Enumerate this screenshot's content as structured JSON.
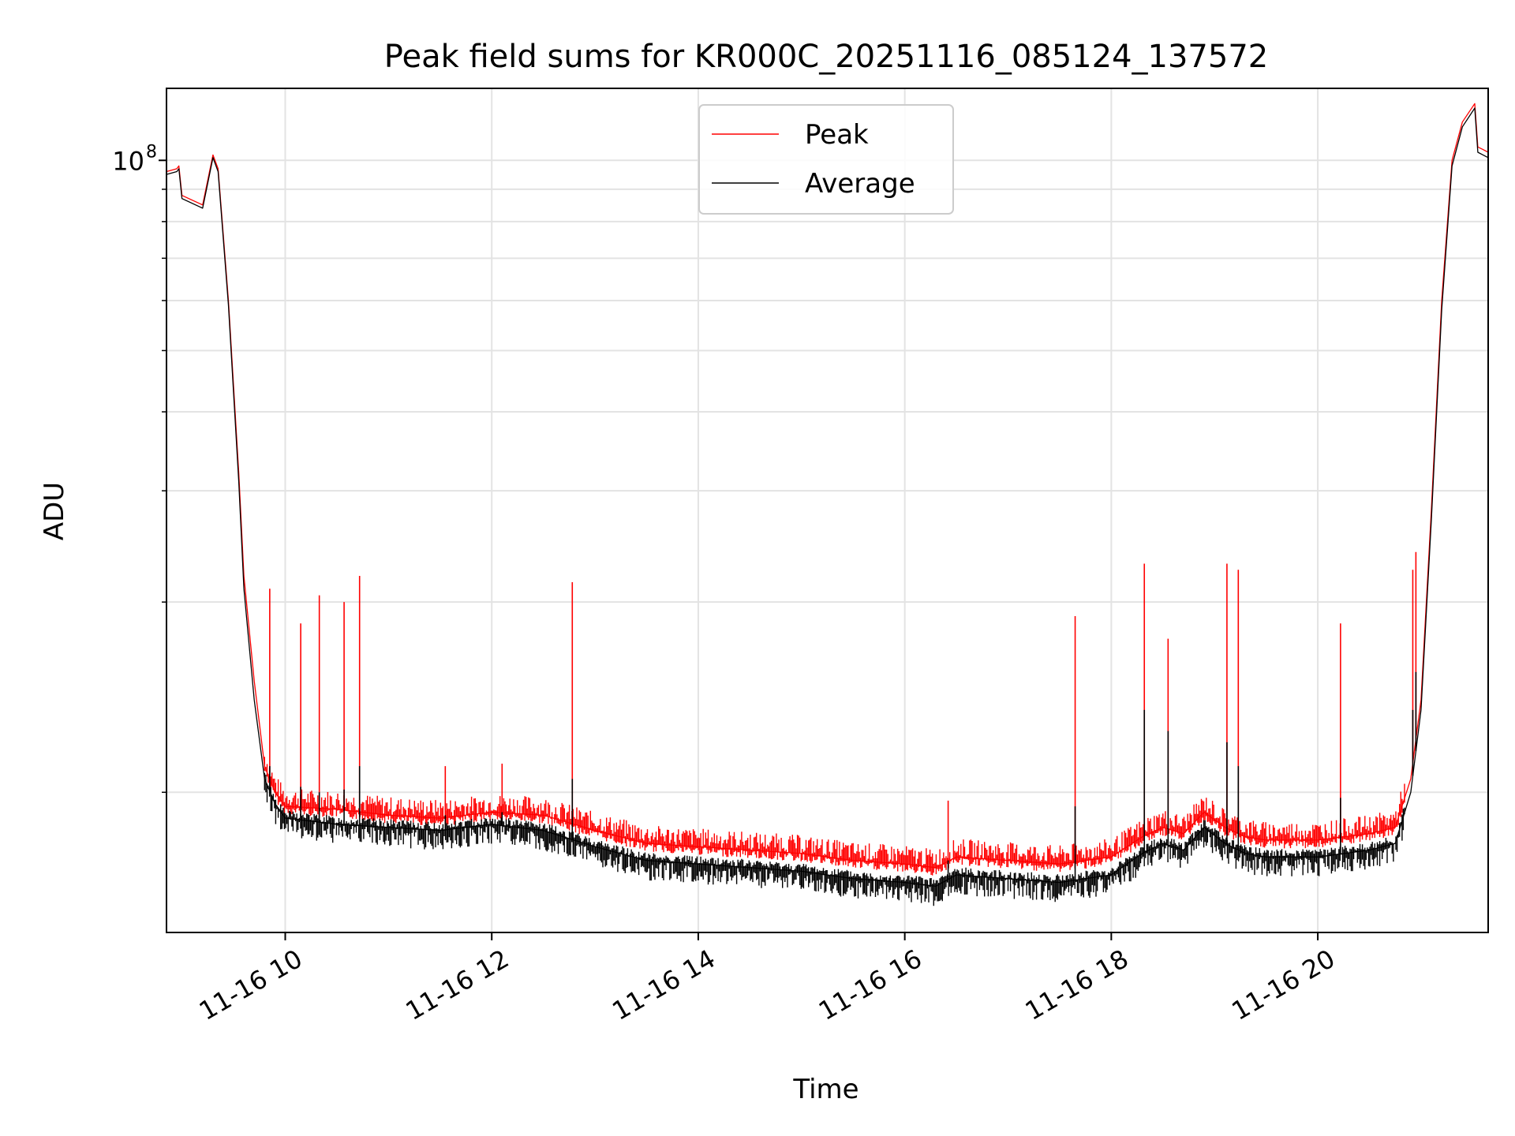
{
  "chart_data": {
    "type": "line",
    "title": "Peak field sums for KR000C_20251116_085124_137572",
    "xlabel": "Time",
    "ylabel": "ADU",
    "yscale": "log",
    "grid": true,
    "legend_position": "top-center",
    "x_unit": "hours since 2025-11-16 00:00",
    "xlim": [
      8.85,
      21.65
    ],
    "ylim": [
      6000000,
      130000000
    ],
    "x_ticks": [
      {
        "value": 10,
        "label": "11-16 10"
      },
      {
        "value": 12,
        "label": "11-16 12"
      },
      {
        "value": 14,
        "label": "11-16 14"
      },
      {
        "value": 16,
        "label": "11-16 16"
      },
      {
        "value": 18,
        "label": "11-16 18"
      },
      {
        "value": 20,
        "label": "11-16 20"
      }
    ],
    "y_major_ticks": [
      {
        "value": 100000000,
        "base": "10",
        "exp": "8"
      }
    ],
    "y_minor_ticks": [
      10000000,
      20000000,
      30000000,
      40000000,
      50000000,
      60000000,
      70000000,
      80000000,
      90000000
    ],
    "series": [
      {
        "name": "Peak",
        "color": "#ff0000",
        "points": [
          [
            8.85,
            96000000
          ],
          [
            8.95,
            97000000
          ],
          [
            8.97,
            98000000
          ],
          [
            9.0,
            88000000
          ],
          [
            9.2,
            85000000
          ],
          [
            9.3,
            102000000
          ],
          [
            9.35,
            97000000
          ],
          [
            9.45,
            60000000
          ],
          [
            9.55,
            32000000
          ],
          [
            9.6,
            22000000
          ],
          [
            9.7,
            15000000
          ],
          [
            9.8,
            11000000
          ],
          [
            9.9,
            10000000
          ],
          [
            10.0,
            9500000
          ],
          [
            10.5,
            9400000
          ],
          [
            11.0,
            9200000
          ],
          [
            11.5,
            9100000
          ],
          [
            12.0,
            9300000
          ],
          [
            12.5,
            9200000
          ],
          [
            13.0,
            8700000
          ],
          [
            13.5,
            8300000
          ],
          [
            14.0,
            8200000
          ],
          [
            14.5,
            8100000
          ],
          [
            15.0,
            8000000
          ],
          [
            15.5,
            7800000
          ],
          [
            16.0,
            7700000
          ],
          [
            16.3,
            7600000
          ],
          [
            16.5,
            7900000
          ],
          [
            17.0,
            7800000
          ],
          [
            17.5,
            7700000
          ],
          [
            18.0,
            7900000
          ],
          [
            18.3,
            8500000
          ],
          [
            18.5,
            8800000
          ],
          [
            18.7,
            8600000
          ],
          [
            18.9,
            9300000
          ],
          [
            19.1,
            8800000
          ],
          [
            19.3,
            8500000
          ],
          [
            19.5,
            8400000
          ],
          [
            20.0,
            8400000
          ],
          [
            20.5,
            8600000
          ],
          [
            20.75,
            8800000
          ],
          [
            20.9,
            10500000
          ],
          [
            21.0,
            14000000
          ],
          [
            21.1,
            28000000
          ],
          [
            21.2,
            60000000
          ],
          [
            21.3,
            100000000
          ],
          [
            21.4,
            115000000
          ],
          [
            21.52,
            123000000
          ],
          [
            21.55,
            105000000
          ],
          [
            21.6,
            104000000
          ],
          [
            21.65,
            103000000
          ]
        ]
      },
      {
        "name": "Average",
        "color": "#000000",
        "points": [
          [
            8.85,
            95000000
          ],
          [
            8.95,
            96000000
          ],
          [
            8.97,
            97000000
          ],
          [
            9.0,
            87000000
          ],
          [
            9.2,
            84000000
          ],
          [
            9.3,
            101000000
          ],
          [
            9.35,
            96000000
          ],
          [
            9.45,
            59000000
          ],
          [
            9.55,
            31000000
          ],
          [
            9.6,
            21000000
          ],
          [
            9.7,
            14000000
          ],
          [
            9.8,
            10500000
          ],
          [
            9.9,
            9600000
          ],
          [
            10.0,
            9100000
          ],
          [
            10.5,
            8900000
          ],
          [
            11.0,
            8800000
          ],
          [
            11.5,
            8700000
          ],
          [
            12.0,
            8900000
          ],
          [
            12.5,
            8700000
          ],
          [
            13.0,
            8200000
          ],
          [
            13.5,
            7800000
          ],
          [
            14.0,
            7700000
          ],
          [
            14.5,
            7600000
          ],
          [
            15.0,
            7500000
          ],
          [
            15.5,
            7300000
          ],
          [
            16.0,
            7200000
          ],
          [
            16.3,
            7100000
          ],
          [
            16.5,
            7400000
          ],
          [
            17.0,
            7300000
          ],
          [
            17.5,
            7200000
          ],
          [
            18.0,
            7400000
          ],
          [
            18.3,
            8000000
          ],
          [
            18.5,
            8300000
          ],
          [
            18.7,
            8100000
          ],
          [
            18.9,
            8800000
          ],
          [
            19.1,
            8300000
          ],
          [
            19.3,
            8000000
          ],
          [
            19.5,
            7900000
          ],
          [
            20.0,
            7900000
          ],
          [
            20.5,
            8100000
          ],
          [
            20.75,
            8300000
          ],
          [
            20.9,
            10000000
          ],
          [
            21.0,
            13500000
          ],
          [
            21.1,
            27000000
          ],
          [
            21.2,
            58000000
          ],
          [
            21.3,
            98000000
          ],
          [
            21.4,
            113000000
          ],
          [
            21.52,
            121000000
          ],
          [
            21.55,
            103000000
          ],
          [
            21.6,
            102000000
          ],
          [
            21.65,
            101000000
          ]
        ]
      }
    ],
    "spikes": [
      {
        "x": 9.85,
        "peak": 21000000,
        "average": 11000000
      },
      {
        "x": 10.15,
        "peak": 18500000,
        "average": 10200000
      },
      {
        "x": 10.33,
        "peak": 20500000,
        "average": 10000000
      },
      {
        "x": 10.57,
        "peak": 20000000,
        "average": 10100000
      },
      {
        "x": 10.72,
        "peak": 22000000,
        "average": 11000000
      },
      {
        "x": 11.55,
        "peak": 11000000,
        "average": 9200000
      },
      {
        "x": 12.1,
        "peak": 11100000,
        "average": 9300000
      },
      {
        "x": 12.78,
        "peak": 21500000,
        "average": 10500000
      },
      {
        "x": 16.42,
        "peak": 9700000,
        "average": 7800000
      },
      {
        "x": 17.65,
        "peak": 19000000,
        "average": 9500000
      },
      {
        "x": 18.32,
        "peak": 23000000,
        "average": 13500000
      },
      {
        "x": 18.55,
        "peak": 17500000,
        "average": 12500000
      },
      {
        "x": 19.12,
        "peak": 23000000,
        "average": 12000000
      },
      {
        "x": 19.23,
        "peak": 22500000,
        "average": 11000000
      },
      {
        "x": 20.22,
        "peak": 18500000,
        "average": 9800000
      },
      {
        "x": 20.92,
        "peak": 22500000,
        "average": 13500000
      },
      {
        "x": 20.95,
        "peak": 24000000,
        "average": 15500000
      }
    ]
  }
}
